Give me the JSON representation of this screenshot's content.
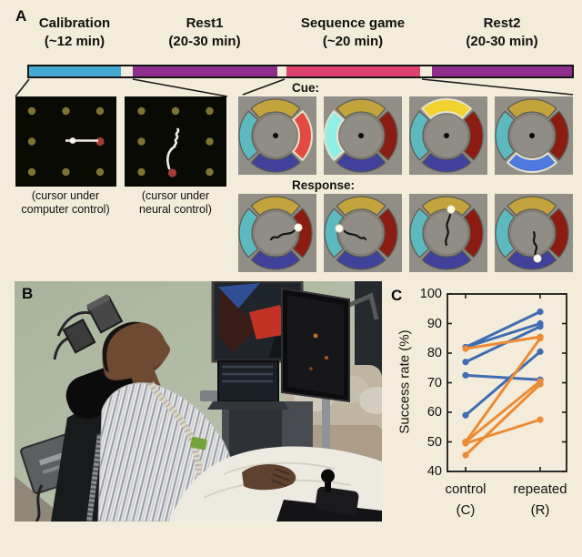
{
  "colors": {
    "background": "#f3ecda",
    "calibration_segment": "#45aad2",
    "rest_segment": "#8e2d8e",
    "sequence_segment": "#e0406e",
    "wedge_gold": "#c2a33c",
    "wedge_teal": "#5db9c0",
    "wedge_dark_red": "#8c1c12",
    "wedge_navy": "#3f419b",
    "wedge_bright_yellow": "#f2d22e",
    "wedge_bright_cyan": "#8fefe7",
    "wedge_bright_red": "#e44b40",
    "wedge_bright_blue": "#4d7ade",
    "series_blue": "#3f6cb4",
    "series_orange": "#ec8b33"
  },
  "panel_a": {
    "label": "A",
    "timeline": [
      {
        "title": "Calibration",
        "duration": "(~12 min)",
        "color": "#45aad2"
      },
      {
        "title": "Rest1",
        "duration": "(20-30 min)",
        "color": "#8e2d8e"
      },
      {
        "title": "Sequence game",
        "duration": "(~20 min)",
        "color": "#e0406e"
      },
      {
        "title": "Rest2",
        "duration": "(20-30 min)",
        "color": "#8e2d8e"
      }
    ],
    "calibration_panels": [
      {
        "caption_line1": "(cursor under",
        "caption_line2": "computer control)",
        "target": "middle-right",
        "trajectory": "straight"
      },
      {
        "caption_line1": "(cursor under",
        "caption_line2": "neural control)",
        "target": "bottom-center",
        "trajectory": "curved"
      }
    ],
    "cue_label": "Cue:",
    "response_label": "Response:",
    "cue_highlights": [
      "right",
      "left",
      "top",
      "bottom"
    ],
    "response_targets": [
      "right",
      "left",
      "top",
      "bottom"
    ]
  },
  "panel_b": {
    "label": "B"
  },
  "panel_c": {
    "label": "C"
  },
  "chart_data": {
    "type": "line",
    "title": "",
    "xlabel": "",
    "ylabel": "Success rate (%)",
    "ylim": [
      40,
      100
    ],
    "y_ticks": [
      40,
      50,
      60,
      70,
      80,
      90,
      100
    ],
    "categories": [
      "control (C)",
      "repeated (R)"
    ],
    "x_tick_labels": [
      {
        "line1": "control",
        "line2": "(C)"
      },
      {
        "line1": "repeated",
        "line2": "(R)"
      }
    ],
    "legend": "none",
    "grid": false,
    "series": [
      {
        "name": "participant-blue",
        "color": "#3f6cb4",
        "pairs": [
          [
            82,
            94
          ],
          [
            82,
            90
          ],
          [
            77,
            89
          ],
          [
            72.5,
            71
          ],
          [
            59,
            80.5
          ]
        ]
      },
      {
        "name": "participant-orange",
        "color": "#ec8b33",
        "pairs": [
          [
            81.5,
            85.5
          ],
          [
            50,
            85
          ],
          [
            50,
            70.5
          ],
          [
            49.5,
            57.5
          ],
          [
            45.5,
            69.5
          ]
        ]
      }
    ]
  }
}
